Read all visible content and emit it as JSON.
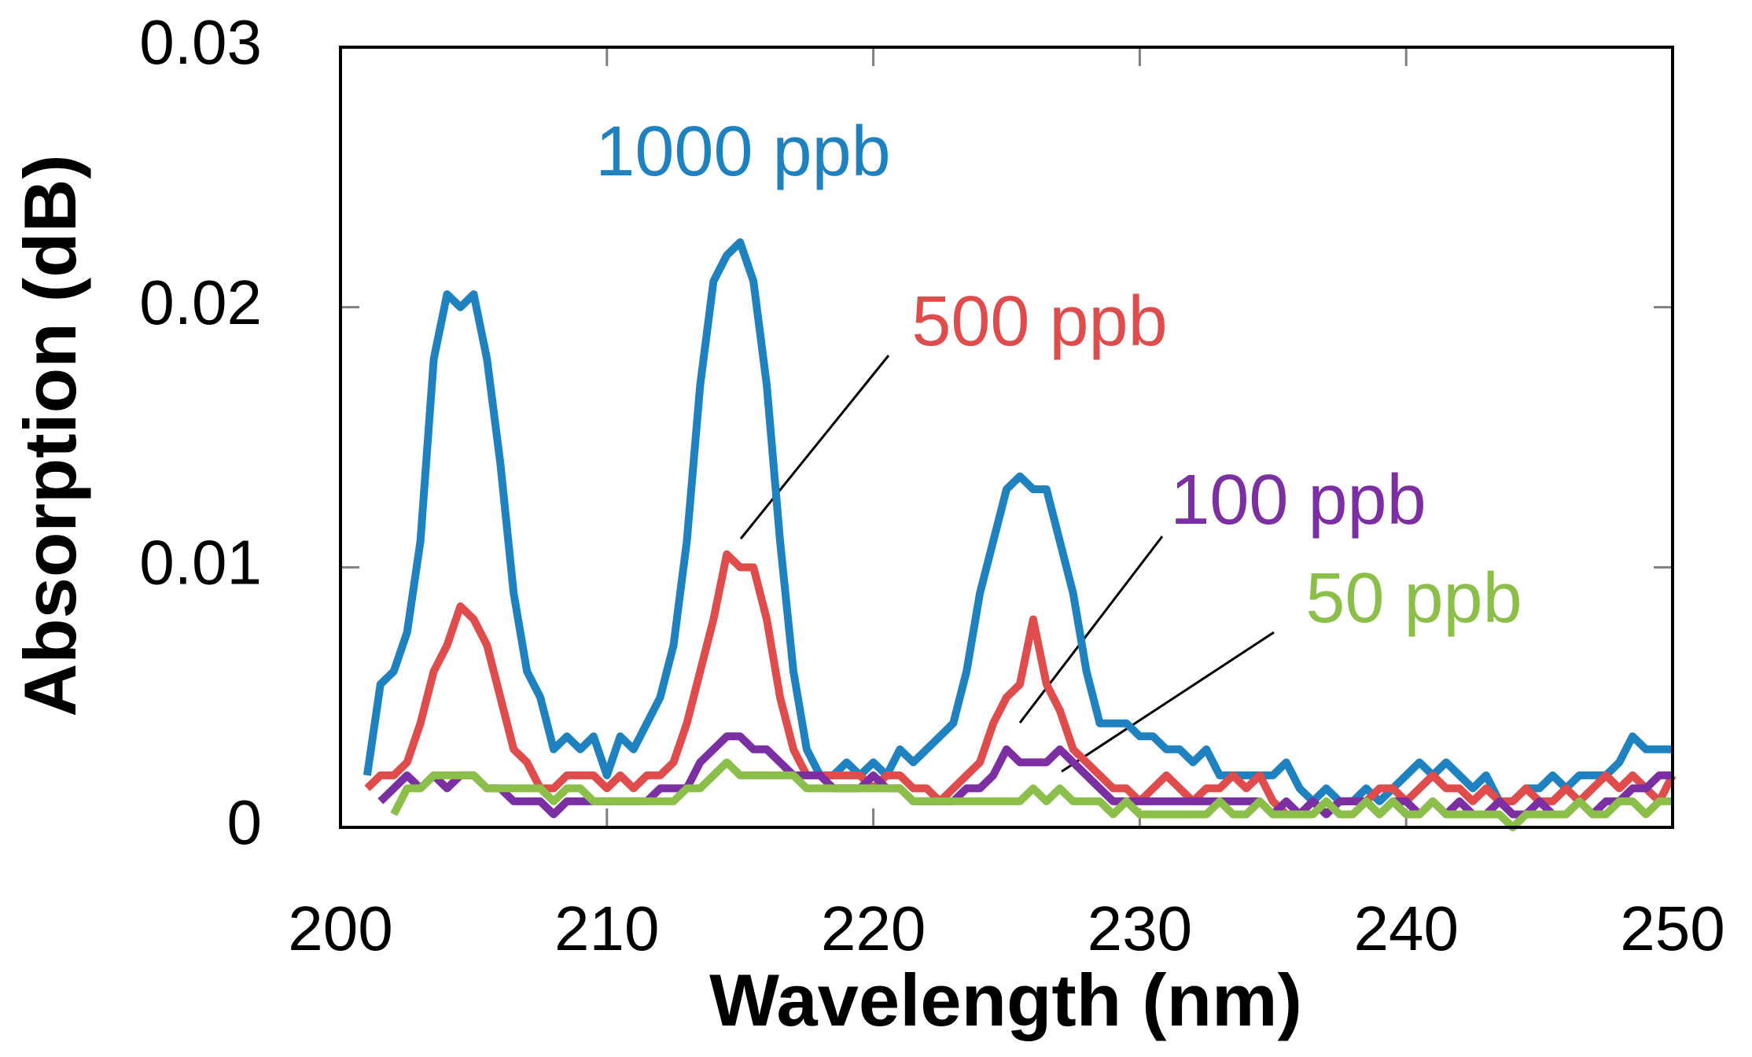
{
  "chart_data": {
    "type": "line",
    "x_label": "Wavelength (nm)",
    "y_label": "Absorption (dB)",
    "xlim": [
      200,
      250
    ],
    "xticks": [
      200,
      210,
      220,
      230,
      240,
      250
    ],
    "ylim": [
      0,
      0.03
    ],
    "yticks": [
      0,
      0.01,
      0.02,
      0.03
    ],
    "x": [
      201,
      201.5,
      202,
      202.5,
      203,
      203.5,
      204,
      204.5,
      205,
      205.5,
      206,
      206.5,
      207,
      207.5,
      208,
      208.5,
      209,
      209.5,
      210,
      210.5,
      211,
      211.5,
      212,
      212.5,
      213,
      213.5,
      214,
      214.5,
      215,
      215.5,
      216,
      216.5,
      217,
      217.5,
      218,
      218.5,
      219,
      219.5,
      220,
      220.5,
      221,
      221.5,
      222,
      222.5,
      223,
      223.5,
      224,
      224.5,
      225,
      225.5,
      226,
      226.5,
      227,
      227.5,
      228,
      228.5,
      229,
      229.5,
      230,
      230.5,
      231,
      231.5,
      232,
      232.5,
      233,
      233.5,
      234,
      234.5,
      235,
      235.5,
      236,
      236.5,
      237,
      237.5,
      238,
      238.5,
      239,
      239.5,
      240,
      240.5,
      241,
      241.5,
      242,
      242.5,
      243,
      243.5,
      244,
      244.5,
      245,
      245.5,
      246,
      246.5,
      247,
      247.5,
      248,
      248.5,
      249,
      249.5,
      250
    ],
    "series": [
      {
        "name": "1000 ppb",
        "color": "#1f82c0",
        "values": [
          0.002,
          0.0055,
          0.006,
          0.0075,
          0.011,
          0.018,
          0.0205,
          0.02,
          0.0205,
          0.018,
          0.014,
          0.009,
          0.006,
          0.005,
          0.003,
          0.0035,
          0.003,
          0.0035,
          0.002,
          0.0035,
          0.003,
          0.004,
          0.005,
          0.007,
          0.011,
          0.017,
          0.021,
          0.022,
          0.0225,
          0.021,
          0.017,
          0.011,
          0.006,
          0.003,
          0.002,
          0.002,
          0.0025,
          0.002,
          0.0025,
          0.002,
          0.003,
          0.0025,
          0.003,
          0.0035,
          0.004,
          0.006,
          0.009,
          0.011,
          0.013,
          0.0135,
          0.013,
          0.013,
          0.011,
          0.009,
          0.006,
          0.004,
          0.004,
          0.004,
          0.0035,
          0.0035,
          0.003,
          0.003,
          0.0025,
          0.003,
          0.002,
          0.002,
          0.002,
          0.002,
          0.002,
          0.0025,
          0.0015,
          0.001,
          0.0015,
          0.001,
          0.001,
          0.0015,
          0.001,
          0.0015,
          0.002,
          0.0025,
          0.002,
          0.0025,
          0.002,
          0.0015,
          0.002,
          0.001,
          0.001,
          0.0015,
          0.0015,
          0.002,
          0.0015,
          0.002,
          0.002,
          0.002,
          0.0025,
          0.0035,
          0.003,
          0.003,
          0.003
        ]
      },
      {
        "name": "500 ppb",
        "color": "#e04b4b",
        "values": [
          0.0015,
          0.002,
          0.002,
          0.0025,
          0.004,
          0.006,
          0.007,
          0.0085,
          0.008,
          0.007,
          0.005,
          0.003,
          0.0025,
          0.0015,
          0.0015,
          0.002,
          0.002,
          0.002,
          0.0015,
          0.002,
          0.0015,
          0.002,
          0.002,
          0.0025,
          0.004,
          0.006,
          0.008,
          0.0105,
          0.01,
          0.01,
          0.008,
          0.005,
          0.003,
          0.002,
          0.002,
          0.002,
          0.002,
          0.002,
          0.0015,
          0.002,
          0.002,
          0.0015,
          0.0015,
          0.001,
          0.0015,
          0.002,
          0.0025,
          0.004,
          0.005,
          0.0055,
          0.008,
          0.0055,
          0.0045,
          0.003,
          0.0025,
          0.002,
          0.0015,
          0.0015,
          0.001,
          0.0015,
          0.002,
          0.0015,
          0.001,
          0.0015,
          0.0015,
          0.002,
          0.0015,
          0.002,
          0.001,
          0.0005,
          0.0005,
          0.001,
          0.0005,
          0.001,
          0.001,
          0.001,
          0.0015,
          0.0015,
          0.001,
          0.0015,
          0.002,
          0.0015,
          0.0015,
          0.001,
          0.0015,
          0.001,
          0.001,
          0.0015,
          0.001,
          0.001,
          0.0015,
          0.001,
          0.0015,
          0.002,
          0.0015,
          0.002,
          0.0015,
          0.001,
          0.002
        ]
      },
      {
        "name": "100 ppb",
        "color": "#7b2fa3",
        "values": [
          null,
          0.001,
          0.0015,
          0.002,
          0.0015,
          0.002,
          0.0015,
          0.002,
          0.002,
          0.0015,
          0.0015,
          0.001,
          0.001,
          0.001,
          0.0005,
          0.001,
          0.001,
          0.001,
          0.001,
          0.001,
          0.001,
          0.001,
          0.0015,
          0.0015,
          0.0015,
          0.0025,
          0.003,
          0.0035,
          0.0035,
          0.003,
          0.003,
          0.0025,
          0.002,
          0.002,
          0.002,
          0.0015,
          0.0015,
          0.0015,
          0.002,
          0.0015,
          0.0015,
          0.001,
          0.001,
          0.001,
          0.001,
          0.0015,
          0.0015,
          0.002,
          0.003,
          0.0025,
          0.0025,
          0.0025,
          0.003,
          0.0025,
          0.002,
          0.0015,
          0.001,
          0.001,
          0.001,
          0.001,
          0.001,
          0.001,
          0.001,
          0.001,
          0.001,
          0.001,
          0.001,
          0.001,
          0.0005,
          0.001,
          0.0005,
          0.001,
          0.0005,
          0.001,
          0.001,
          0.001,
          0.0005,
          0.001,
          0.001,
          0.0005,
          0.001,
          0.0005,
          0.001,
          0.0005,
          0.0005,
          0.001,
          0.0005,
          0.0005,
          0.001,
          0.0005,
          0.0005,
          0.001,
          0.0005,
          0.001,
          0.001,
          0.0015,
          0.0015,
          0.002,
          0.002
        ]
      },
      {
        "name": "50 ppb",
        "color": "#8bbf4a",
        "values": [
          null,
          null,
          0.0005,
          0.0015,
          0.0015,
          0.002,
          0.002,
          0.002,
          0.002,
          0.0015,
          0.0015,
          0.0015,
          0.0015,
          0.0015,
          0.001,
          0.0015,
          0.0015,
          0.001,
          0.001,
          0.001,
          0.001,
          0.001,
          0.001,
          0.001,
          0.0015,
          0.0015,
          0.002,
          0.0025,
          0.002,
          0.002,
          0.002,
          0.002,
          0.002,
          0.0015,
          0.0015,
          0.0015,
          0.0015,
          0.0015,
          0.0015,
          0.0015,
          0.0015,
          0.001,
          0.001,
          0.001,
          0.001,
          0.001,
          0.001,
          0.001,
          0.001,
          0.001,
          0.0015,
          0.001,
          0.0015,
          0.001,
          0.001,
          0.001,
          0.0005,
          0.001,
          0.0005,
          0.0005,
          0.0005,
          0.0005,
          0.0005,
          0.0005,
          0.001,
          0.0005,
          0.0005,
          0.001,
          0.0005,
          0.0005,
          0.0005,
          0.0005,
          0.001,
          0.0005,
          0.0005,
          0.001,
          0.0005,
          0.001,
          0.0005,
          0.0005,
          0.001,
          0.0005,
          0.0005,
          0.0005,
          0.0005,
          0.0005,
          0,
          0.0005,
          0.0005,
          0.0005,
          0.0005,
          0.001,
          0.0005,
          0.0005,
          0.001,
          0.001,
          0.0005,
          0.001,
          0.001
        ]
      }
    ]
  }
}
